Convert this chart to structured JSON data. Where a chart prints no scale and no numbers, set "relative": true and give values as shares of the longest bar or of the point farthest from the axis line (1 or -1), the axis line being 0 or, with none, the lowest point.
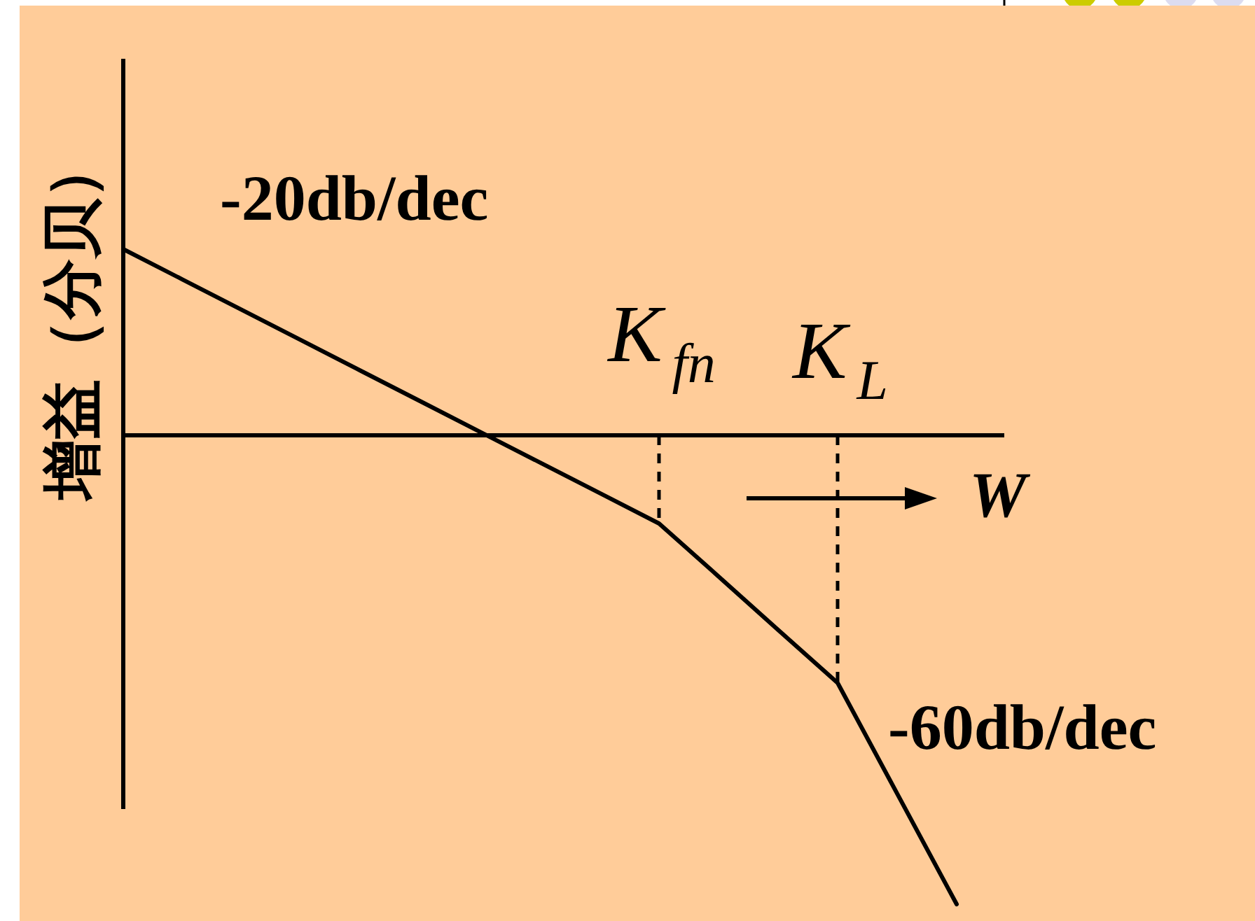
{
  "chart_data": {
    "type": "line",
    "ylabel": "增益（分贝）",
    "xlabel": "W",
    "categories": [
      null,
      null,
      null,
      null,
      null,
      null,
      null,
      null,
      null,
      "K$_{fn}$",
      null,
      null,
      "K$_{L}$",
      null,
      null
    ],
    "values": [
      0.397,
      0.332,
      0.267,
      0.202,
      0.137,
      0.072,
      0.007,
      -0.058,
      -0.123,
      -0.188,
      -0.301,
      -0.415,
      -0.528,
      -0.764,
      -1
    ],
    "relative": true,
    "color": "#000000",
    "ref_lines": [
      {
        "axis": "x",
        "value": "K$_{fn}$",
        "line_style": "dashed",
        "color": "#000000"
      },
      {
        "axis": "x",
        "value": "K$_{L}$",
        "line_style": "dashed",
        "color": "#000000"
      }
    ],
    "annotations": [
      "-20db/dec",
      "-60db/dec"
    ]
  }
}
